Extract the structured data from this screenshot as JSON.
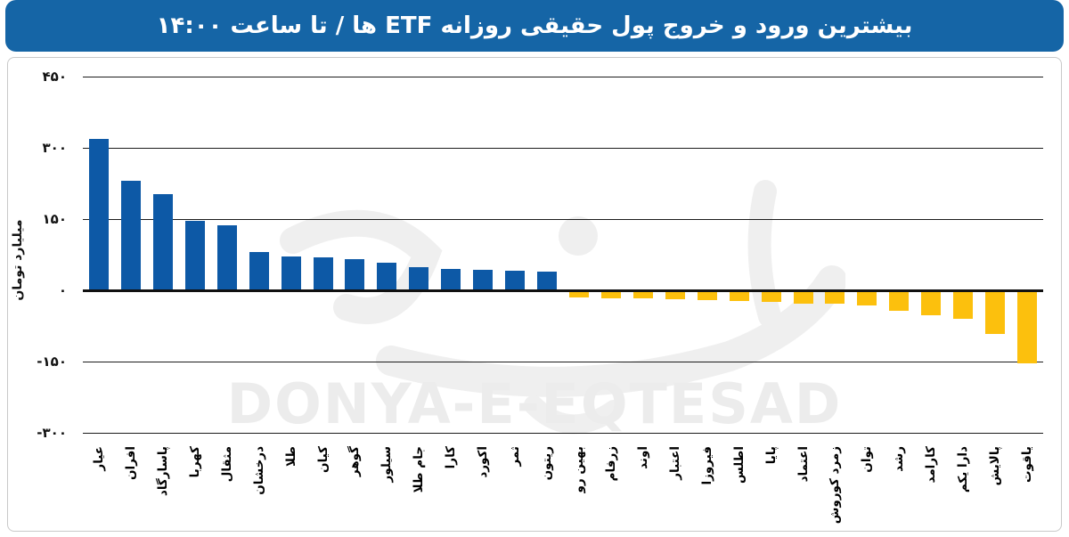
{
  "header": {
    "title": "بیشترین ورود و خروج پول حقیقی روزانه ETF ها / تا ساعت ۱۴:۰۰",
    "bg_color": "#1565a6",
    "text_color": "#ffffff"
  },
  "watermark": {
    "text": "DONYA-E-EQTESAD"
  },
  "chart_data": {
    "type": "bar",
    "title": "بیشترین ورود و خروج پول حقیقی روزانه ETF ها / تا ساعت ۱۴:۰۰",
    "ylabel": "میلیارد تومان",
    "ylim": [
      -300,
      450
    ],
    "grid": true,
    "yticks": [
      {
        "value": 450,
        "label": "۴۵۰"
      },
      {
        "value": 300,
        "label": "۳۰۰"
      },
      {
        "value": 150,
        "label": "۱۵۰"
      },
      {
        "value": 0,
        "label": "۰"
      },
      {
        "value": -150,
        "label": "-۱۵۰"
      },
      {
        "value": -300,
        "label": "-۳۰۰"
      }
    ],
    "categories": [
      "عیار",
      "افران",
      "پاسارگاد",
      "کهربا",
      "مثقال",
      "درخشان",
      "طلا",
      "کیان",
      "گوهر",
      "سیلور",
      "جام طلا",
      "کارا",
      "اکورد",
      "ثمر",
      "ریتون",
      "بهین رو",
      "زرفام",
      "اوند",
      "اعتبار",
      "فیروزا",
      "اطلس",
      "پایا",
      "اعتماد",
      "زمرد کوروش",
      "توان",
      "رشد",
      "کارامد",
      "دارا یکم",
      "پالایش",
      "یاقوت"
    ],
    "values": [
      318,
      230,
      202,
      146,
      136,
      81,
      71,
      69,
      66,
      58,
      49,
      45,
      43,
      41,
      39,
      -15,
      -16,
      -17,
      -19,
      -21,
      -22,
      -24,
      -28,
      -29,
      -31,
      -43,
      -53,
      -60,
      -92,
      -153
    ],
    "positive_color": "#0d59a6",
    "negative_color": "#fcc00d",
    "gridline_color": "#1c1c1c"
  }
}
